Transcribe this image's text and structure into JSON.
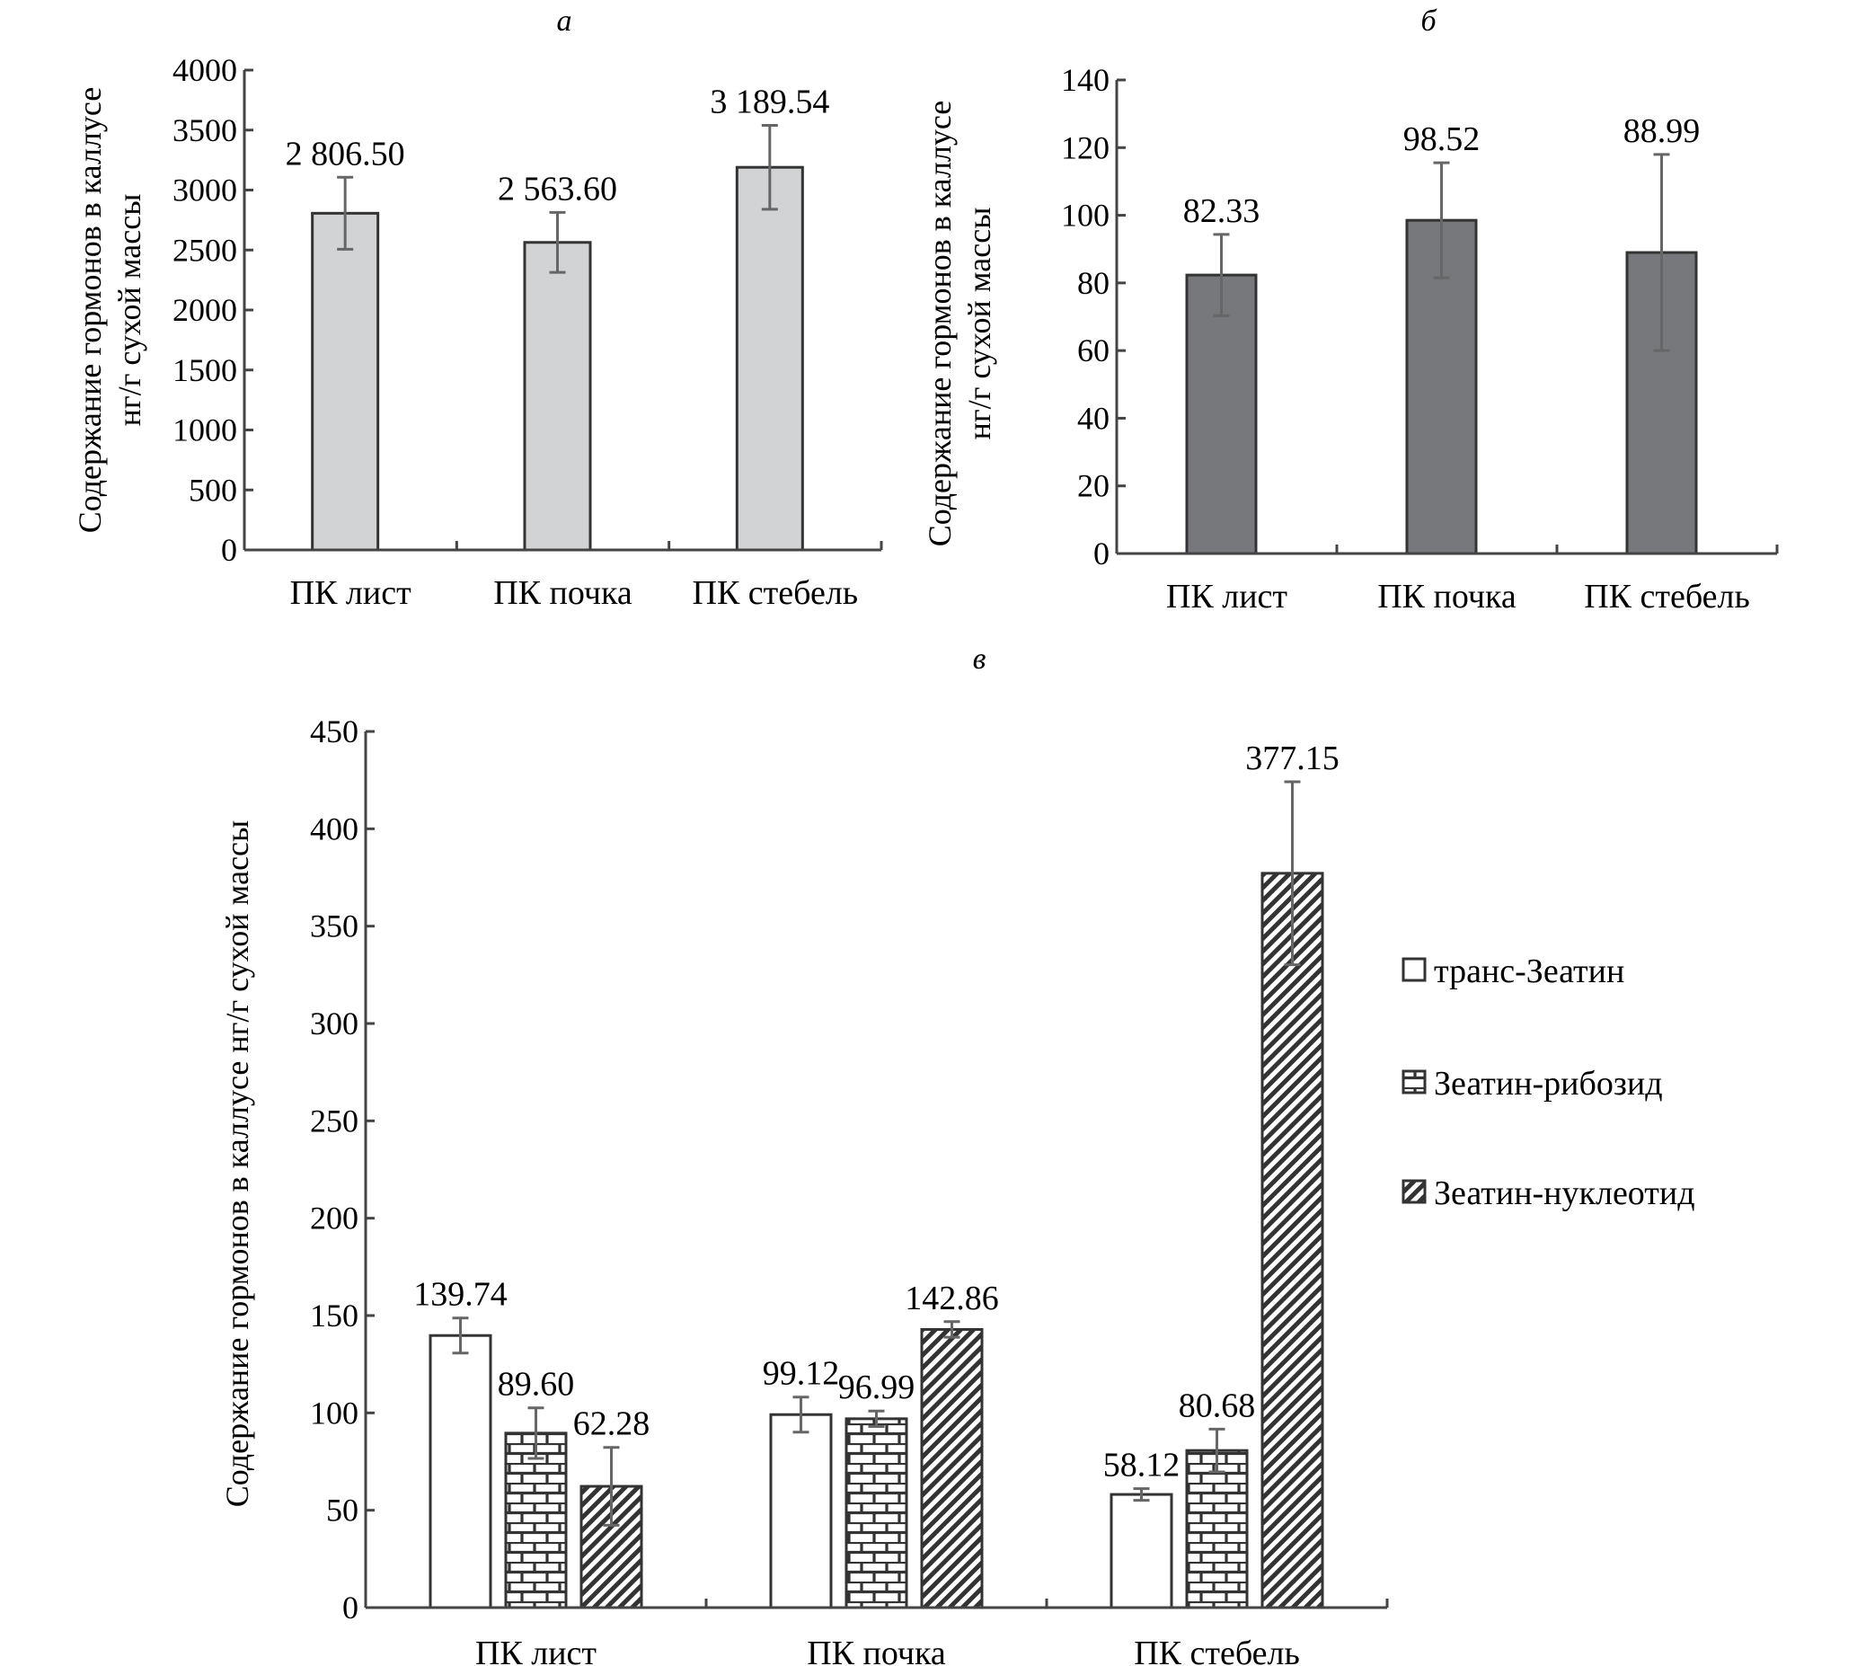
{
  "chart_data": [
    {
      "id": "a",
      "panel_label": "а",
      "type": "bar",
      "title": "",
      "ylabel": [
        "Содержание гормонов в каллусе",
        "нг/г сухой массы"
      ],
      "xlabel": "",
      "categories": [
        "ПК лист",
        "ПК почка",
        "ПК стебель"
      ],
      "values": [
        2806.5,
        2563.6,
        3189.54
      ],
      "errors": [
        300,
        250,
        350
      ],
      "value_labels": [
        "2 806.50",
        "2 563.60",
        "3 189.54"
      ],
      "ylim": [
        0,
        4000
      ],
      "yticks": [
        0,
        500,
        1000,
        1500,
        2000,
        2500,
        3000,
        3500,
        4000
      ],
      "bar_color": "#d1d3d4",
      "grid": false,
      "legend": null
    },
    {
      "id": "b",
      "panel_label": "б",
      "type": "bar",
      "title": "",
      "ylabel": [
        "Содержание гормонов в каллусе",
        "нг/г сухой массы"
      ],
      "xlabel": "",
      "categories": [
        "ПК лист",
        "ПК почка",
        "ПК стебель"
      ],
      "values": [
        82.33,
        98.52,
        88.99
      ],
      "errors": [
        12,
        17,
        29
      ],
      "value_labels": [
        "82.33",
        "98.52",
        "88.99"
      ],
      "ylim": [
        0,
        140
      ],
      "yticks": [
        0,
        20,
        40,
        60,
        80,
        100,
        120,
        140
      ],
      "bar_color": "#77787b",
      "grid": false,
      "legend": null
    },
    {
      "id": "c",
      "panel_label": "в",
      "type": "bar",
      "title": "",
      "ylabel": [
        "Содержание гормонов в каллусе нг/г сухой массы"
      ],
      "xlabel": "",
      "categories": [
        "ПК лист",
        "ПК почка",
        "ПК стебель"
      ],
      "series": [
        {
          "name": "транс-Зеатин",
          "pattern": "plain",
          "values": [
            139.74,
            99.12,
            58.12
          ],
          "errors": [
            9,
            9,
            3
          ],
          "value_labels": [
            "139.74",
            "99.12",
            "58.12"
          ]
        },
        {
          "name": "Зеатин-рибозид",
          "pattern": "brick",
          "values": [
            89.6,
            96.99,
            80.68
          ],
          "errors": [
            13,
            4,
            11
          ],
          "value_labels": [
            "89.60",
            "96.99",
            "80.68"
          ]
        },
        {
          "name": "Зеатин-нуклеотид",
          "pattern": "diagonal",
          "values": [
            62.28,
            142.86,
            377.15
          ],
          "errors": [
            20,
            4,
            47
          ],
          "value_labels": [
            "62.28",
            "142.86",
            "377.15"
          ]
        }
      ],
      "ylim": [
        0,
        450
      ],
      "yticks": [
        0,
        50,
        100,
        150,
        200,
        250,
        300,
        350,
        400,
        450
      ],
      "grid": false,
      "legend": "right"
    }
  ]
}
